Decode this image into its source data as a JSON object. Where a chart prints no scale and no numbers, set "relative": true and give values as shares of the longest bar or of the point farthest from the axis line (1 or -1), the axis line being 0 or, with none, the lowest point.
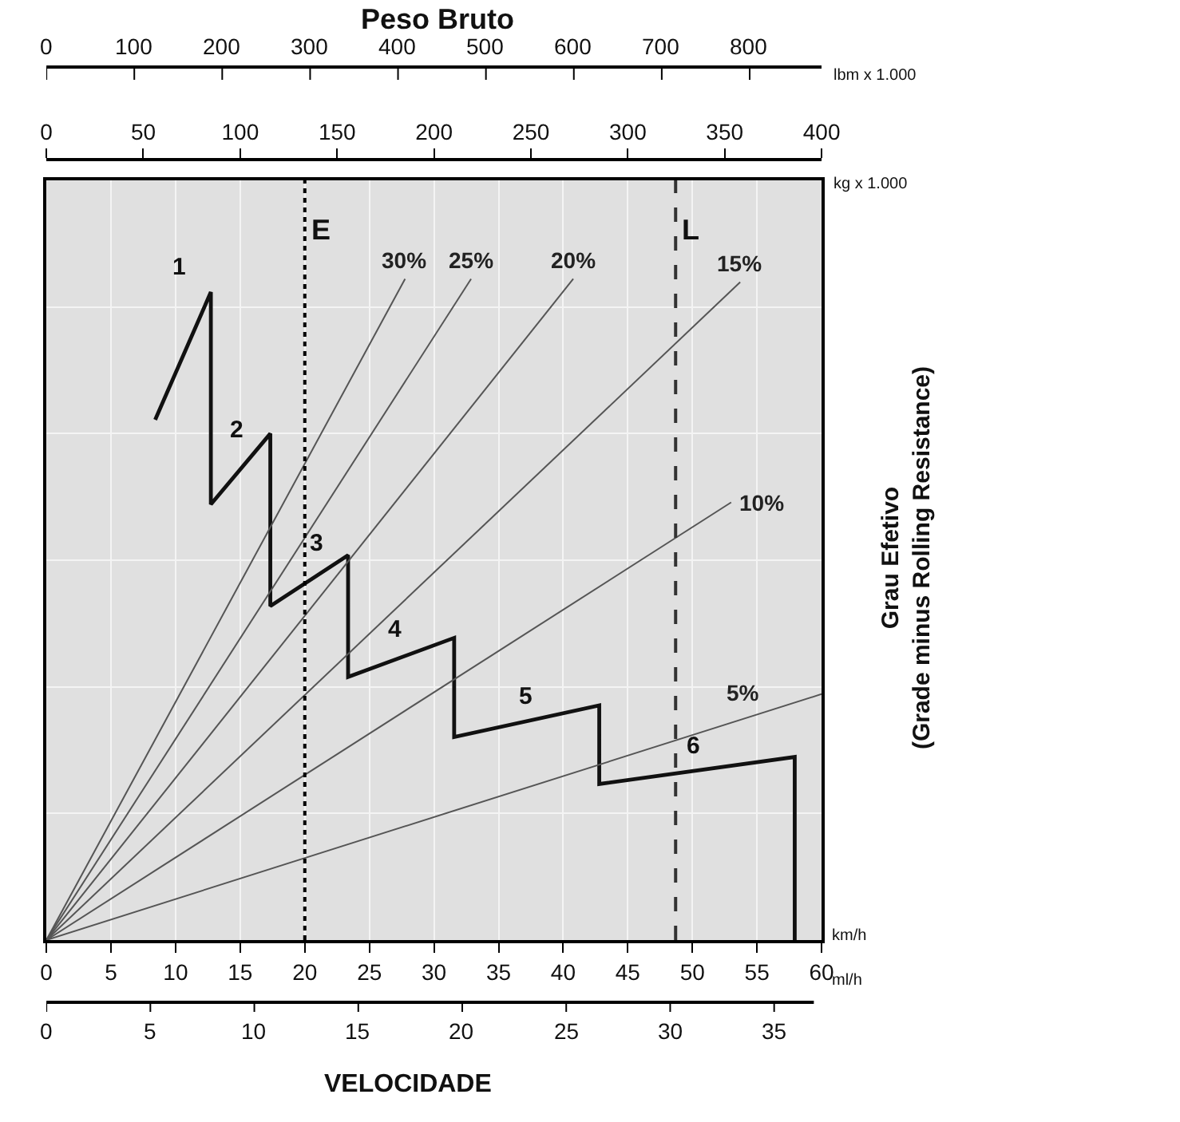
{
  "chart_data": {
    "type": "line",
    "title": "Peso Bruto",
    "xlabel": "VELOCIDADE",
    "ylabel": "Grau Efetivo\n(Grade minus Rolling Resistance)",
    "relative": true,
    "grid": true,
    "legend": false,
    "marker": "none",
    "line_style": "solid",
    "xlim": [
      0,
      60
    ],
    "xticks": [
      0,
      5,
      10,
      15,
      20,
      25,
      30,
      35,
      40,
      45,
      50,
      55,
      60
    ],
    "x2lim": [
      0,
      400
    ],
    "x2ticks": [
      0,
      50,
      100,
      150,
      200,
      250,
      300,
      350,
      400
    ],
    "annotations": [
      "km/h",
      "ml/h",
      "kg x 1.000",
      "lbm x 1.000",
      "1",
      "2",
      "3",
      "4",
      "5",
      "6",
      "0",
      "100",
      "200",
      "300",
      "400",
      "500",
      "600",
      "700",
      "800",
      "0",
      "5",
      "10",
      "15",
      "20",
      "25",
      "30",
      "35"
    ],
    "ref_lines": [
      {
        "axis": "x",
        "value": 20,
        "label": "E",
        "line_style": "dotted",
        "color": "#000000"
      },
      {
        "axis": "x",
        "value": 48.7,
        "label": "L",
        "line_style": "dashed",
        "color": "#333333"
      }
    ],
    "series": [
      {
        "color": "#111111",
        "x": [
          8.42,
          12.73,
          12.73,
          17.33,
          17.33,
          23.35,
          23.35,
          31.56,
          31.56,
          42.79,
          42.79,
          57.92,
          57.92
        ],
        "values": [
          0.787,
          0.98,
          0.659,
          0.766,
          0.505,
          0.582,
          0.398,
          0.457,
          0.307,
          0.355,
          0.236,
          0.277,
          0
        ]
      },
      {
        "name": "30%",
        "color": "#555555",
        "x": [
          0,
          27.76
        ],
        "values": [
          0,
          1
        ]
      },
      {
        "name": "25%",
        "color": "#555555",
        "x": [
          0,
          32.87
        ],
        "values": [
          0,
          1
        ]
      },
      {
        "name": "20%",
        "color": "#555555",
        "x": [
          0,
          40.78
        ],
        "values": [
          0,
          1
        ]
      },
      {
        "name": "15%",
        "color": "#555555",
        "x": [
          0,
          53.7
        ],
        "values": [
          0,
          0.995
        ]
      },
      {
        "name": "10%",
        "color": "#555555",
        "x": [
          0,
          53.0
        ],
        "values": [
          0,
          0.662
        ]
      },
      {
        "name": "5%",
        "color": "#555555",
        "x": [
          0,
          60
        ],
        "values": [
          0,
          0.372
        ]
      }
    ]
  }
}
